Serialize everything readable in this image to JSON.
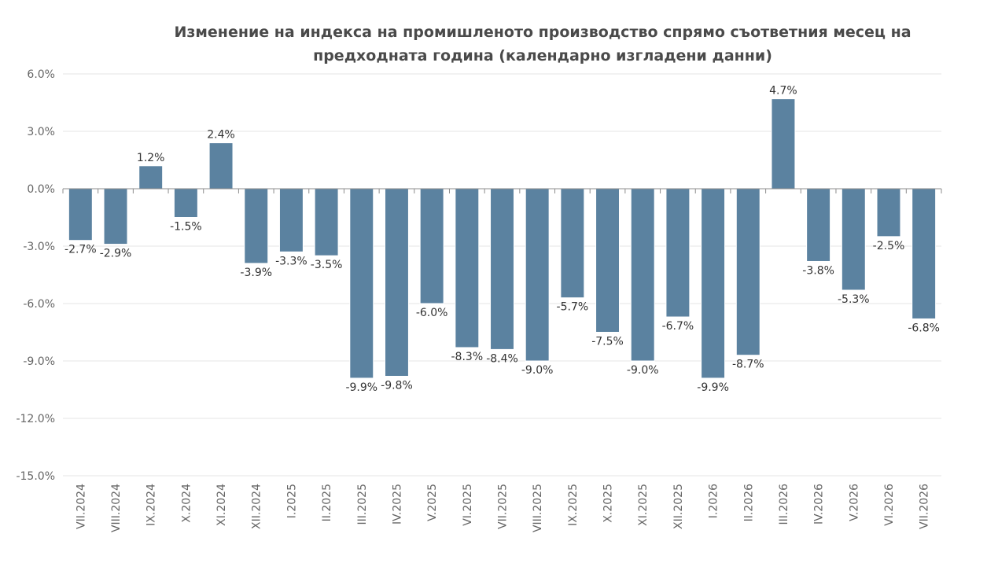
{
  "chart_data": {
    "type": "bar",
    "title": "Изменение на индекса на промишленото производство спрямо съответния месец на\nпредходната година (календарно изгладени данни)",
    "categories": [
      "VII.2024",
      "VIII.2024",
      "IX.2024",
      "X.2024",
      "XI.2024",
      "XII.2024",
      "I.2025",
      "II.2025",
      "III.2025",
      "IV.2025",
      "V.2025",
      "VI.2025",
      "VII.2025",
      "VIII.2025",
      "IX.2025",
      "X.2025",
      "XI.2025",
      "XII.2025",
      "I.2026",
      "II.2026",
      "III.2026",
      "IV.2026",
      "V.2026",
      "VI.2026",
      "VII.2026"
    ],
    "values": [
      -2.7,
      -2.9,
      1.2,
      -1.5,
      2.4,
      -3.9,
      -3.3,
      -3.5,
      -9.9,
      -9.8,
      -6.0,
      -8.3,
      -8.4,
      -9.0,
      -5.7,
      -7.5,
      -9.0,
      -6.7,
      -9.9,
      -8.7,
      4.7,
      -3.8,
      -5.3,
      -2.5,
      -6.8
    ],
    "data_labels": [
      "-2.7%",
      "-2.9%",
      "1.2%",
      "-1.5%",
      "2.4%",
      "-3.9%",
      "-3.3%",
      "-3.5%",
      "-9.9%",
      "-9.8%",
      "-6.0%",
      "-8.3%",
      "-8.4%",
      "-9.0%",
      "-5.7%",
      "-7.5%",
      "-9.0%",
      "-6.7%",
      "-9.9%",
      "-8.7%",
      "4.7%",
      "-3.8%",
      "-5.3%",
      "-2.5%",
      "-6.8%"
    ],
    "y_ticks": [
      {
        "value": 6,
        "label": "6.0%"
      },
      {
        "value": 3,
        "label": "3.0%"
      },
      {
        "value": 0,
        "label": "0.0%"
      },
      {
        "value": -3,
        "label": "-3.0%"
      },
      {
        "value": -6,
        "label": "-6.0%"
      },
      {
        "value": -9,
        "label": "-9.0%"
      },
      {
        "value": -12,
        "label": "-12.0%"
      },
      {
        "value": -15,
        "label": "-15.0%"
      }
    ],
    "ylim": [
      -15,
      6
    ],
    "grid": true,
    "bar_color": "#5b82a0"
  }
}
